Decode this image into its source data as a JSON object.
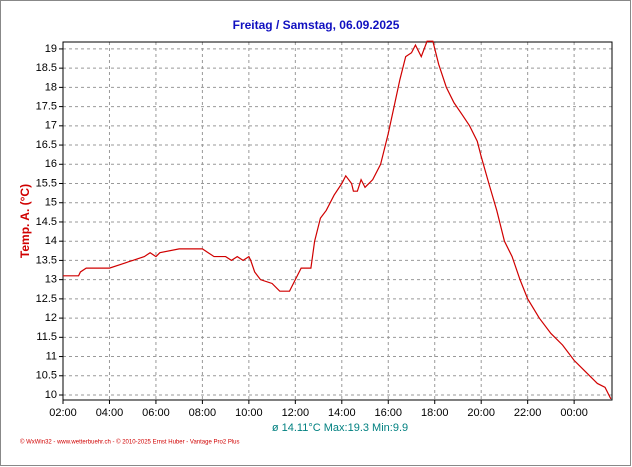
{
  "chart_data": {
    "type": "line",
    "title": "Freitag / Samstag, 06.09.2025",
    "y_label": "Temp. A. (°C)",
    "annotation": "ø 14.11°C  Max:19.3  Min:9.9",
    "footer": "© WxWin32 - www.wetterbuehr.ch - © 2010-2025 Ernst Huber - Vantage Pro2 Plus",
    "xlim": [
      2,
      25.63
    ],
    "xticks": [
      {
        "value": 2,
        "label": "02:00"
      },
      {
        "value": 4,
        "label": "04:00"
      },
      {
        "value": 6,
        "label": "06:00"
      },
      {
        "value": 8,
        "label": "08:00"
      },
      {
        "value": 10,
        "label": "10:00"
      },
      {
        "value": 12,
        "label": "12:00"
      },
      {
        "value": 14,
        "label": "14:00"
      },
      {
        "value": 16,
        "label": "16:00"
      },
      {
        "value": 18,
        "label": "18:00"
      },
      {
        "value": 20,
        "label": "20:00"
      },
      {
        "value": 22,
        "label": "22:00"
      },
      {
        "value": 24,
        "label": "00:00"
      }
    ],
    "ylim": [
      9.87,
      19.18
    ],
    "yticks": [
      10,
      10.5,
      11,
      11.5,
      12,
      12.5,
      13,
      13.5,
      14,
      14.5,
      15,
      15.5,
      16,
      16.5,
      17,
      17.5,
      18,
      18.5,
      19
    ],
    "grid": true,
    "x": [
      2,
      2.67,
      2.75,
      3,
      4,
      4.5,
      5,
      5.5,
      5.75,
      6,
      6.17,
      7,
      8,
      8.25,
      8.5,
      9,
      9.25,
      9.5,
      9.75,
      10,
      10.08,
      10.25,
      10.5,
      11,
      11.33,
      11.75,
      12,
      12.25,
      12.67,
      12.83,
      13.08,
      13.33,
      13.67,
      14,
      14.17,
      14.42,
      14.5,
      14.67,
      14.83,
      15,
      15.33,
      15.67,
      16,
      16.25,
      16.5,
      16.75,
      17,
      17.17,
      17.42,
      17.67,
      17.92,
      18.17,
      18.5,
      18.83,
      19.17,
      19.5,
      19.83,
      20,
      20.33,
      20.67,
      21,
      21.33,
      21.67,
      22,
      22.5,
      23,
      23.5,
      24,
      24.5,
      25,
      25.33,
      25.58
    ],
    "series": [
      {
        "name": "Temp. A.",
        "color": "#d00000",
        "values": [
          13.1,
          13.1,
          13.2,
          13.3,
          13.3,
          13.4,
          13.5,
          13.6,
          13.7,
          13.6,
          13.7,
          13.8,
          13.8,
          13.7,
          13.6,
          13.6,
          13.5,
          13.6,
          13.5,
          13.6,
          13.5,
          13.2,
          13.0,
          12.9,
          12.7,
          12.7,
          13.0,
          13.3,
          13.3,
          14.0,
          14.6,
          14.8,
          15.2,
          15.5,
          15.7,
          15.5,
          15.3,
          15.3,
          15.6,
          15.4,
          15.6,
          16.0,
          16.8,
          17.5,
          18.2,
          18.8,
          18.9,
          19.1,
          18.8,
          19.2,
          19.2,
          18.6,
          18.0,
          17.6,
          17.3,
          17.0,
          16.6,
          16.2,
          15.5,
          14.8,
          14.0,
          13.6,
          13.0,
          12.5,
          12.0,
          11.6,
          11.3,
          10.9,
          10.6,
          10.3,
          10.2,
          9.9
        ]
      }
    ]
  }
}
